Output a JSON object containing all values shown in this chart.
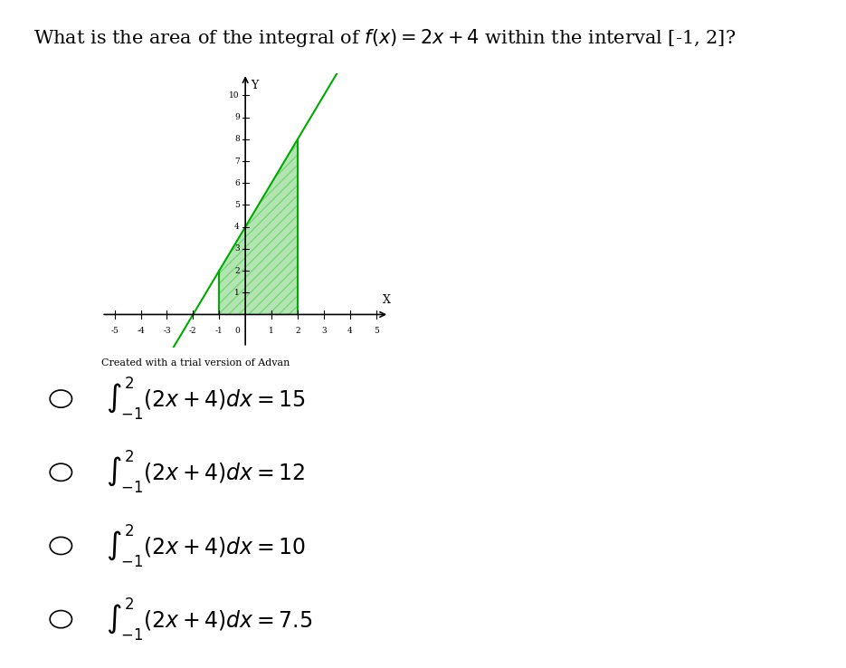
{
  "title": "What is the area of the integral of $f(x) = 2x + 4$ within the interval [-1, 2]?",
  "title_fontsize": 15,
  "graph_xlim": [
    -5.5,
    5.5
  ],
  "graph_ylim": [
    -1.5,
    11
  ],
  "x_ticks": [
    -5,
    -4,
    -3,
    -2,
    -1,
    1,
    2,
    3,
    4,
    5
  ],
  "y_ticks": [
    1,
    2,
    3,
    4,
    5,
    6,
    7,
    8,
    9,
    10
  ],
  "integral_a": -1,
  "integral_b": 2,
  "line_color": "#00aa00",
  "fill_color": "#00aa00",
  "fill_alpha": 0.3,
  "hatch": "///",
  "watermark": "Created with a trial version of Advan",
  "options": [
    "$\\int_{-1}^{2}(2x+4)dx = 15$",
    "$\\int_{-1}^{2}(2x+4)dx = 12$",
    "$\\int_{-1}^{2}(2x+4)dx = 10$",
    "$\\int_{-1}^{2}(2x+4)dx = 7.5$"
  ],
  "options_fontsize": 17,
  "background_color": "#ffffff"
}
